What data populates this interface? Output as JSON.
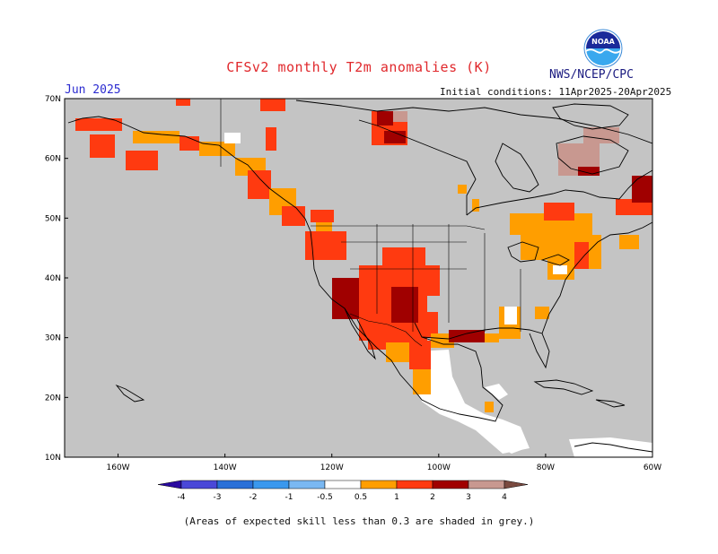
{
  "header": {
    "title": "CFSv2 monthly T2m anomalies (K)",
    "org": "NWS/NCEP/CPC",
    "month": "Jun 2025",
    "initial_conditions": "Initial conditions: 11Apr2025-20Apr2025",
    "logo_text": "NOAA"
  },
  "map": {
    "lon_range": [
      -170,
      -60
    ],
    "lat_range": [
      10,
      70
    ],
    "lon_ticks": [
      "160W",
      "140W",
      "120W",
      "100W",
      "80W",
      "60W"
    ],
    "lat_ticks": [
      "10N",
      "20N",
      "30N",
      "40N",
      "50N",
      "60N",
      "70N"
    ],
    "colors": {
      "grey_low_skill": "#c4c4c4",
      "no_anomaly": "#ffffff",
      "warm_0_5_1": "#ff9e00",
      "warm_1_2": "#ff3a10",
      "warm_2_3": "#a00000",
      "warm_3_4": "#c89890",
      "coastline": "#000000"
    }
  },
  "colorbar": {
    "labels": [
      "-4",
      "-3",
      "-2",
      "-1",
      "-0.5",
      "0.5",
      "1",
      "2",
      "3",
      "4"
    ],
    "colors": [
      "#2a0aa0",
      "#4a48d8",
      "#2a70d8",
      "#3a98ee",
      "#7ab8f2",
      "#ffffff",
      "#ff9e00",
      "#ff3a10",
      "#a00000",
      "#c89890",
      "#7a4a40"
    ]
  },
  "footnote": "(Areas of expected skill less than 0.3 are shaded in grey.)"
}
